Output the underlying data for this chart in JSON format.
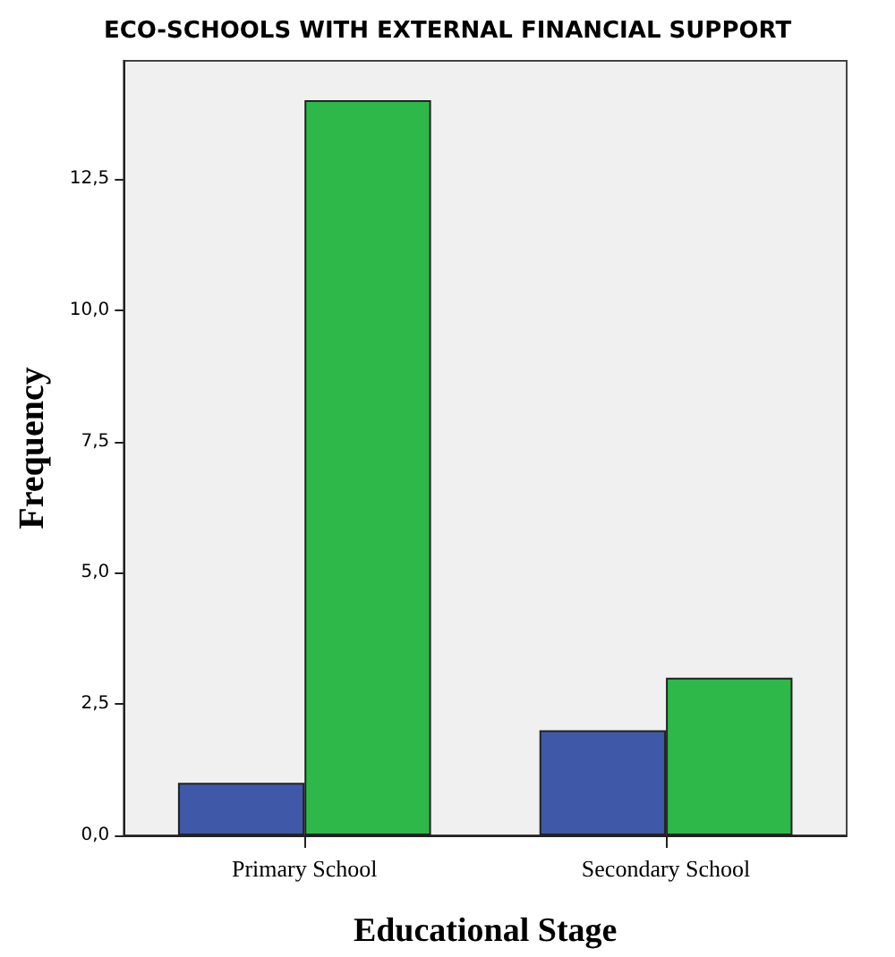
{
  "chart_data": {
    "type": "bar",
    "title": "ECO-SCHOOLS WITH EXTERNAL FINANCIAL SUPPORT",
    "xlabel": "Educational Stage",
    "ylabel": "Frequency",
    "categories": [
      "Primary School",
      "Secondary School"
    ],
    "series": [
      {
        "color": "#3f58a8",
        "values": [
          1,
          2
        ]
      },
      {
        "color": "#2eb84a",
        "values": [
          14,
          3
        ]
      }
    ],
    "ylim": [
      0,
      14.75
    ],
    "yticks": [
      {
        "value": 0,
        "label": "0,0"
      },
      {
        "value": 2.5,
        "label": "2,5"
      },
      {
        "value": 5,
        "label": "5,0"
      },
      {
        "value": 7.5,
        "label": "7,5"
      },
      {
        "value": 10,
        "label": "10,0"
      },
      {
        "value": 12.5,
        "label": "12,5"
      }
    ],
    "grid": false
  }
}
